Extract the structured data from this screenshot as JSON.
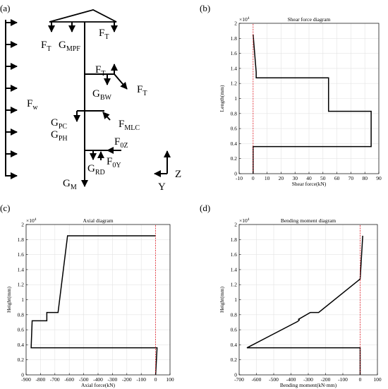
{
  "panels": {
    "a": "(a)",
    "b": "(b)",
    "c": "(c)",
    "d": "(d)"
  },
  "diagram": {
    "labels": [
      {
        "id": "ft-top-right",
        "main": "F",
        "sub": "T"
      },
      {
        "id": "ft-top-left",
        "main": "F",
        "sub": "T"
      },
      {
        "id": "g-mpf",
        "main": "G",
        "sub": "MPF"
      },
      {
        "id": "ft-mid",
        "main": "F",
        "sub": "T"
      },
      {
        "id": "ft-diag",
        "main": "F",
        "sub": "T"
      },
      {
        "id": "g-bw",
        "main": "G",
        "sub": "BW"
      },
      {
        "id": "f-w",
        "main": "F",
        "sub": "w"
      },
      {
        "id": "g-pc",
        "main": "G",
        "sub": "PC"
      },
      {
        "id": "g-ph",
        "main": "G",
        "sub": "PH"
      },
      {
        "id": "f-mlc",
        "main": "F",
        "sub": "MLC"
      },
      {
        "id": "f-0z",
        "main": "F",
        "sub": "0Z"
      },
      {
        "id": "f-0y",
        "main": "F",
        "sub": "0Y"
      },
      {
        "id": "g-rd",
        "main": "G",
        "sub": "RD"
      },
      {
        "id": "g-m",
        "main": "G",
        "sub": "M"
      }
    ],
    "axes": {
      "z": "Z",
      "y": "Y"
    }
  },
  "chart_data": [
    {
      "id": "b",
      "type": "line",
      "title": "Shear force diagram",
      "xlabel": "Shear force(kN)",
      "ylabel": "Length(mm)",
      "xlim": [
        -10,
        90
      ],
      "ylim": [
        0,
        2
      ],
      "y_multiplier": "×10",
      "y_multiplier_exp": "4",
      "xticks": [
        -10,
        0,
        10,
        20,
        30,
        40,
        50,
        60,
        70,
        80,
        90
      ],
      "yticks": [
        0,
        0.2,
        0.4,
        0.6,
        0.8,
        1,
        1.2,
        1.4,
        1.6,
        1.8,
        2
      ],
      "ytick_labels": [
        "0",
        "0.2",
        "0.4",
        "0.6",
        "0.8",
        "1",
        "1.2",
        "1.4",
        "1.6",
        "1.8",
        "2"
      ],
      "grid": true,
      "series": [
        {
          "color": "#000000",
          "x": [
            0,
            0,
            84.5,
            84.5,
            54,
            54,
            2.2,
            2.2,
            0
          ],
          "y": [
            0,
            0.36,
            0.36,
            0.83,
            0.83,
            1.275,
            1.275,
            1.35,
            1.85
          ]
        },
        {
          "color": "#e8202a",
          "dashed": true,
          "x": [
            0,
            0
          ],
          "y": [
            0,
            2
          ]
        }
      ]
    },
    {
      "id": "c",
      "type": "line",
      "title": "Axial diagram",
      "xlabel": "Axial force(kN)",
      "ylabel": "Height(mm)",
      "xlim": [
        -900,
        100
      ],
      "ylim": [
        0,
        2
      ],
      "y_multiplier": "×10",
      "y_multiplier_exp": "4",
      "xticks": [
        -900,
        -800,
        -700,
        -600,
        -500,
        -400,
        -300,
        -200,
        -100,
        0,
        100
      ],
      "yticks": [
        0,
        0.2,
        0.4,
        0.6,
        0.8,
        1,
        1.2,
        1.4,
        1.6,
        1.8,
        2
      ],
      "ytick_labels": [
        "0",
        "0.2",
        "0.4",
        "0.6",
        "0.8",
        "1",
        "1.2",
        "1.4",
        "1.6",
        "1.8",
        "2"
      ],
      "grid": true,
      "series": [
        {
          "color": "#000000",
          "x": [
            0,
            10,
            10,
            -865,
            -858,
            -756,
            -756,
            -678,
            -612,
            0
          ],
          "y": [
            0,
            0.36,
            0.36,
            0.36,
            0.72,
            0.72,
            0.83,
            0.83,
            1.85,
            1.85
          ]
        },
        {
          "color": "#e8202a",
          "dashed": true,
          "x": [
            0,
            0
          ],
          "y": [
            0,
            2
          ]
        }
      ]
    },
    {
      "id": "d",
      "type": "line",
      "title": "Bending moment diagram",
      "xlabel": "Bending moment(kN·mm)",
      "ylabel": "Height(mm)",
      "xlim": [
        -700,
        100
      ],
      "ylim": [
        0,
        2
      ],
      "y_multiplier": "×10",
      "y_multiplier_exp": "4",
      "xticks": [
        -700,
        -600,
        -500,
        -400,
        -300,
        -200,
        -100,
        0,
        100
      ],
      "yticks": [
        0,
        0.2,
        0.4,
        0.6,
        0.8,
        1,
        1.2,
        1.4,
        1.6,
        1.8,
        2
      ],
      "ytick_labels": [
        "0",
        "0.2",
        "0.4",
        "0.6",
        "0.8",
        "1",
        "1.2",
        "1.4",
        "1.6",
        "1.8",
        "2"
      ],
      "grid": true,
      "series": [
        {
          "color": "#000000",
          "x": [
            0,
            0,
            -655,
            -362,
            -352,
            -356,
            -288,
            -240,
            0,
            15,
            15
          ],
          "y": [
            0,
            0.36,
            0.36,
            0.71,
            0.73,
            0.74,
            0.83,
            0.83,
            1.275,
            1.85,
            1.85
          ]
        },
        {
          "color": "#e8202a",
          "dashed": true,
          "x": [
            0,
            0
          ],
          "y": [
            0,
            2
          ]
        }
      ]
    }
  ]
}
